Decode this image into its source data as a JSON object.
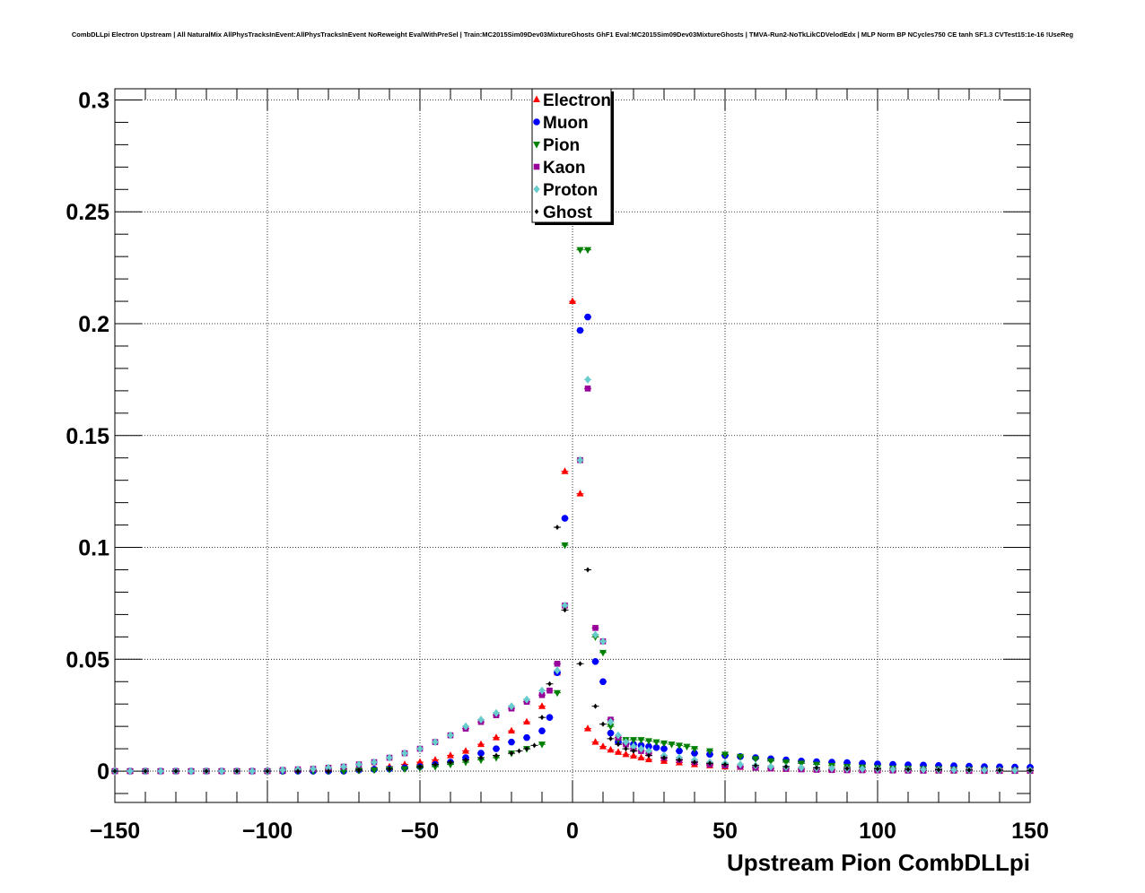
{
  "chart_data": {
    "type": "scatter",
    "title": "CombDLLpi Electron Upstream | All NaturalMix AllPhysTracksInEvent:AllPhysTracksInEvent NoReweight EvalWithPreSel | Train:MC2015Sim09Dev03MixtureGhosts GhF1 Eval:MC2015Sim09Dev03MixtureGhosts | TMVA-Run2-NoTkLikCDVelodEdx | MLP Norm BP NCycles750 CE tanh SF1.3 CVTest15:1e-16 !UseReg",
    "xlabel": "Upstream Pion CombDLLpi",
    "ylabel": "",
    "xlim": [
      -150,
      150
    ],
    "ylim": [
      -0.014,
      0.305
    ],
    "x_ticks": [
      -150,
      -100,
      -50,
      0,
      50,
      100,
      150
    ],
    "x_tick_labels": [
      "−150",
      "−100",
      "−50",
      "0",
      "50",
      "100",
      "150"
    ],
    "y_ticks": [
      0,
      0.05,
      0.1,
      0.15,
      0.2,
      0.25,
      0.3
    ],
    "y_tick_labels": [
      "0",
      "0.05",
      "0.1",
      "0.15",
      "0.2",
      "0.25",
      "0.3"
    ],
    "grid": true,
    "legend_position": "top-center",
    "series": [
      {
        "name": "Electron",
        "color": "#ff0000",
        "marker": "triangle-up",
        "x": [
          -150,
          -145,
          -140,
          -135,
          -130,
          -125,
          -120,
          -115,
          -110,
          -105,
          -100,
          -95,
          -90,
          -85,
          -80,
          -75,
          -70,
          -65,
          -60,
          -55,
          -50,
          -45,
          -40,
          -35,
          -30,
          -25,
          -20,
          -15,
          -10,
          -5,
          -2.5,
          0,
          2.5,
          5,
          7.5,
          10,
          12.5,
          15,
          17.5,
          20,
          22.5,
          25,
          30,
          35,
          40,
          45,
          50,
          55,
          60,
          65,
          70,
          75,
          80,
          85,
          90,
          95,
          100,
          105,
          110,
          115,
          120,
          125,
          130,
          135,
          140,
          145,
          150
        ],
        "y": [
          0,
          0,
          0,
          0,
          0,
          0,
          0,
          0,
          0,
          0,
          0,
          0,
          0.0005,
          0.0005,
          0.0005,
          0.001,
          0.001,
          0.0015,
          0.002,
          0.003,
          0.004,
          0.005,
          0.007,
          0.009,
          0.012,
          0.015,
          0.018,
          0.022,
          0.029,
          0.044,
          0.134,
          0.21,
          0.124,
          0.019,
          0.013,
          0.011,
          0.0095,
          0.0085,
          0.0075,
          0.0068,
          0.006,
          0.0052,
          0.0045,
          0.0038,
          0.003,
          0.0025,
          0.002,
          0.0018,
          0.0015,
          0.0012,
          0.001,
          0.001,
          0.0008,
          0.0007,
          0.0006,
          0.0005,
          0.0005,
          0.0004,
          0.0004,
          0.0003,
          0.0003,
          0.0003,
          0.0002,
          0.0002,
          0.0002,
          0.0002,
          0.0002
        ]
      },
      {
        "name": "Muon",
        "color": "#0000ff",
        "marker": "circle",
        "x": [
          -150,
          -145,
          -140,
          -135,
          -130,
          -125,
          -120,
          -115,
          -110,
          -105,
          -100,
          -95,
          -90,
          -85,
          -80,
          -75,
          -70,
          -65,
          -60,
          -55,
          -50,
          -45,
          -40,
          -35,
          -30,
          -25,
          -20,
          -15,
          -10,
          -7.5,
          -5,
          -2.5,
          2.5,
          5,
          7.5,
          10,
          12.5,
          15,
          17.5,
          20,
          22.5,
          25,
          27.5,
          30,
          35,
          40,
          45,
          50,
          55,
          60,
          65,
          70,
          75,
          80,
          85,
          90,
          95,
          100,
          105,
          110,
          115,
          120,
          125,
          130,
          135,
          140,
          145,
          150
        ],
        "y": [
          0,
          0,
          0,
          0,
          0,
          0,
          0,
          0,
          0,
          0,
          0,
          0,
          0,
          0,
          0,
          0,
          0.0005,
          0.0008,
          0.001,
          0.0015,
          0.002,
          0.003,
          0.004,
          0.006,
          0.008,
          0.01,
          0.013,
          0.015,
          0.018,
          0.024,
          0.044,
          0.113,
          0.197,
          0.203,
          0.049,
          0.04,
          0.017,
          0.013,
          0.0125,
          0.012,
          0.0115,
          0.011,
          0.0105,
          0.01,
          0.009,
          0.008,
          0.0075,
          0.007,
          0.0065,
          0.006,
          0.0055,
          0.005,
          0.0045,
          0.0042,
          0.004,
          0.0038,
          0.0035,
          0.0032,
          0.003,
          0.0028,
          0.0027,
          0.0025,
          0.0024,
          0.0022,
          0.002,
          0.0019,
          0.0018,
          0.0017
        ]
      },
      {
        "name": "Pion",
        "color": "#008000",
        "marker": "triangle-down",
        "x": [
          -150,
          -145,
          -140,
          -135,
          -130,
          -125,
          -120,
          -115,
          -110,
          -105,
          -100,
          -95,
          -90,
          -85,
          -80,
          -75,
          -70,
          -65,
          -60,
          -55,
          -50,
          -45,
          -40,
          -35,
          -30,
          -25,
          -20,
          -15,
          -10,
          -5,
          -2.5,
          2.5,
          5,
          7.5,
          10,
          12.5,
          15,
          17.5,
          20,
          22.5,
          25,
          27.5,
          30,
          32.5,
          35,
          37.5,
          40,
          45,
          50,
          55,
          60,
          65,
          70,
          75,
          80,
          85,
          90,
          95,
          100,
          105,
          110,
          115,
          120,
          125,
          130,
          135,
          140,
          145,
          150
        ],
        "y": [
          0,
          0,
          0,
          0,
          0,
          0,
          0,
          0,
          0,
          0,
          0,
          0,
          0,
          0,
          0,
          0,
          0.0003,
          0.0005,
          0.0008,
          0.001,
          0.0015,
          0.002,
          0.003,
          0.004,
          0.005,
          0.006,
          0.008,
          0.01,
          0.012,
          0.035,
          0.101,
          0.233,
          0.233,
          0.06,
          0.053,
          0.02,
          0.014,
          0.014,
          0.014,
          0.014,
          0.0135,
          0.013,
          0.0125,
          0.012,
          0.0115,
          0.011,
          0.01,
          0.009,
          0.0075,
          0.0065,
          0.0055,
          0.0045,
          0.004,
          0.0035,
          0.003,
          0.0025,
          0.002,
          0.0018,
          0.0015,
          0.0013,
          0.0012,
          0.001,
          0.001,
          0.0008,
          0.0007,
          0.0006,
          0.0005,
          0.0005,
          0.0004
        ]
      },
      {
        "name": "Kaon",
        "color": "#990099",
        "marker": "square",
        "x": [
          -150,
          -145,
          -140,
          -135,
          -130,
          -125,
          -120,
          -115,
          -110,
          -105,
          -100,
          -95,
          -90,
          -85,
          -80,
          -75,
          -70,
          -65,
          -60,
          -55,
          -50,
          -45,
          -40,
          -35,
          -30,
          -25,
          -20,
          -15,
          -10,
          -7.5,
          -5,
          -2.5,
          2.5,
          5,
          7.5,
          10,
          12.5,
          15,
          17.5,
          20,
          22.5,
          25,
          30,
          35,
          40,
          45,
          50,
          55,
          60,
          65,
          70,
          75,
          80,
          85,
          90,
          95,
          100,
          105,
          110,
          115,
          120,
          125,
          130,
          135,
          140,
          145,
          150
        ],
        "y": [
          0,
          0,
          0,
          0,
          0,
          0,
          0,
          0,
          0,
          0,
          0,
          0.0005,
          0.0008,
          0.001,
          0.0015,
          0.002,
          0.003,
          0.004,
          0.006,
          0.008,
          0.01,
          0.013,
          0.016,
          0.019,
          0.022,
          0.025,
          0.028,
          0.031,
          0.034,
          0.036,
          0.048,
          0.074,
          0.139,
          0.171,
          0.064,
          0.058,
          0.023,
          0.015,
          0.012,
          0.01,
          0.009,
          0.008,
          0.006,
          0.005,
          0.004,
          0.003,
          0.0025,
          0.002,
          0.0015,
          0.0012,
          0.001,
          0.0008,
          0.0006,
          0.0005,
          0.0004,
          0.0004,
          0.0003,
          0.0003,
          0.0002,
          0.0002,
          0.0002,
          0.0002,
          0.0001,
          0.0001,
          0.0001,
          0.0001,
          0.0001
        ]
      },
      {
        "name": "Proton",
        "color": "#66cccc",
        "marker": "diamond",
        "x": [
          -150,
          -145,
          -140,
          -135,
          -130,
          -125,
          -120,
          -115,
          -110,
          -105,
          -100,
          -95,
          -90,
          -85,
          -80,
          -75,
          -70,
          -65,
          -60,
          -55,
          -50,
          -45,
          -40,
          -35,
          -30,
          -25,
          -20,
          -15,
          -10,
          -5,
          -2.5,
          2.5,
          5,
          7.5,
          10,
          12.5,
          15,
          17.5,
          20,
          22.5,
          25,
          30,
          35,
          40,
          45,
          50,
          55,
          60,
          65,
          70,
          75,
          80,
          85,
          90,
          95,
          100,
          105,
          110,
          115,
          120,
          125,
          130,
          135,
          140,
          145,
          150
        ],
        "y": [
          0,
          0,
          0,
          0,
          0,
          0,
          0,
          0,
          0,
          0,
          0,
          0.0005,
          0.0008,
          0.001,
          0.0015,
          0.002,
          0.003,
          0.004,
          0.006,
          0.008,
          0.01,
          0.013,
          0.016,
          0.02,
          0.023,
          0.026,
          0.029,
          0.032,
          0.036,
          0.045,
          0.074,
          0.139,
          0.175,
          0.061,
          0.058,
          0.022,
          0.016,
          0.013,
          0.011,
          0.01,
          0.009,
          0.007,
          0.006,
          0.005,
          0.004,
          0.0035,
          0.003,
          0.0025,
          0.002,
          0.0018,
          0.0015,
          0.0013,
          0.0012,
          0.001,
          0.001,
          0.0009,
          0.0008,
          0.0007,
          0.0007,
          0.0006,
          0.0006,
          0.0005,
          0.0005,
          0.0004,
          0.0004,
          0.0004
        ]
      },
      {
        "name": "Ghost",
        "color": "#000000",
        "marker": "small-diamond",
        "x": [
          -150,
          -140,
          -130,
          -120,
          -110,
          -100,
          -90,
          -80,
          -70,
          -60,
          -50,
          -45,
          -40,
          -35,
          -30,
          -25,
          -20,
          -17.5,
          -15,
          -12.5,
          -10,
          -7.5,
          -5,
          -2.5,
          2.5,
          5,
          7.5,
          10,
          12.5,
          15,
          17.5,
          20,
          25,
          30,
          35,
          40,
          45,
          50,
          60,
          70,
          80,
          90,
          100,
          110,
          120,
          130,
          140,
          150
        ],
        "y": [
          0,
          0,
          0,
          0,
          0,
          0,
          0,
          0,
          0.0005,
          0.001,
          0.002,
          0.003,
          0.004,
          0.005,
          0.006,
          0.007,
          0.008,
          0.009,
          0.01,
          0.0115,
          0.024,
          0.039,
          0.109,
          0.072,
          0.048,
          0.09,
          0.029,
          0.021,
          0.0145,
          0.012,
          0.01,
          0.009,
          0.007,
          0.006,
          0.005,
          0.004,
          0.0035,
          0.003,
          0.0025,
          0.002,
          0.0015,
          0.0012,
          0.001,
          0.0008,
          0.0006,
          0.0005,
          0.0004,
          0.0003
        ]
      }
    ]
  }
}
